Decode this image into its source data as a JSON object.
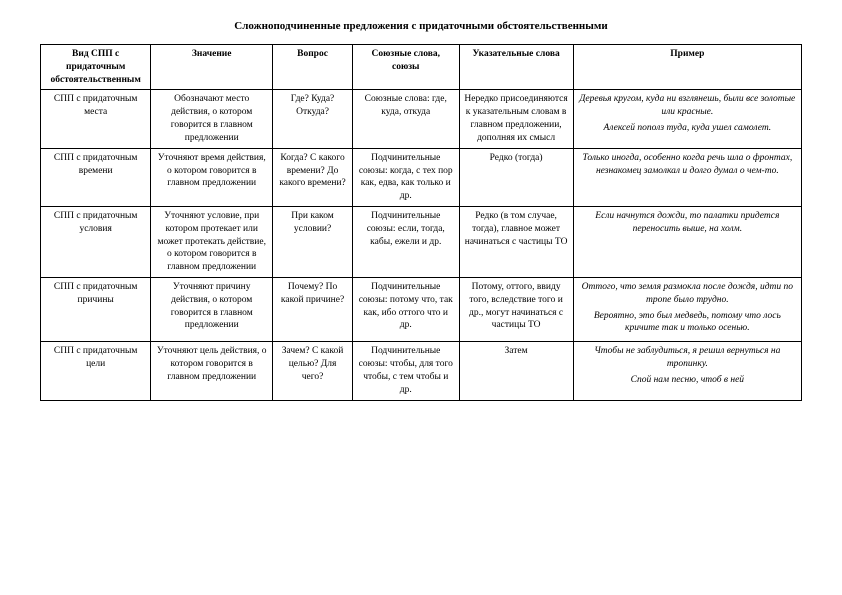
{
  "title": "Сложноподчиненные предложения с придаточными обстоятельственными",
  "headers": {
    "c1": "Вид СПП с придаточным обстоятельственным",
    "c2": "Значение",
    "c3": "Вопрос",
    "c4": "Союзные слова, союзы",
    "c5": "Указательные слова",
    "c6": "Пример"
  },
  "rows": [
    {
      "type": "СПП с придаточным места",
      "meaning": "Обозначают место действия, о котором говорится в главном предложении",
      "question": "Где? Куда? Откуда?",
      "unions": "Союзные слова: где, куда, откуда",
      "pointers": "Нередко присоединяются к указательным словам в главном предложении, дополняя их смысл",
      "example1": "Деревья кругом, куда ни взглянешь, были все золотые или красные.",
      "example2": "Алексей пополз туда, куда ушел самолет."
    },
    {
      "type": "СПП с придаточным времени",
      "meaning": "Уточняют время действия, о котором говорится в главном предложении",
      "question": "Когда? С какого времени? До какого времени?",
      "unions": "Подчинительные союзы: когда, с тех пор как, едва, как только и др.",
      "pointers": "Редко (тогда)",
      "example1": "Только иногда, особенно когда речь шла о фронтах, незнакомец замолкал и долго думал о чем-то.",
      "example2": ""
    },
    {
      "type": "СПП с придаточным условия",
      "meaning": "Уточняют условие, при котором протекает или может протекать действие, о котором говорится в главном предложении",
      "question": "При каком условии?",
      "unions": "Подчинительные союзы: если, тогда, кабы, ежели и др.",
      "pointers": "Редко (в том случае, тогда), главное может начинаться с частицы ТО",
      "example1": "Если начнутся дожди, то палатки придется переносить выше, на холм.",
      "example2": ""
    },
    {
      "type": "СПП с придаточным причины",
      "meaning": "Уточняют причину действия, о котором говорится в главном предложении",
      "question": "Почему? По какой причине?",
      "unions": "Подчинительные союзы: потому что, так как,  ибо оттого что и др.",
      "pointers": "Потому, оттого, ввиду того, вследствие того и др., могут начинаться с частицы ТО",
      "example1": "Оттого, что земля размокла после дождя, идти по тропе было трудно.",
      "example2": "Вероятно, это был медведь, потому что лось кричите так и только осенью."
    },
    {
      "type": "СПП с придаточным цели",
      "meaning": "Уточняют цель действия, о котором говорится в главном предложении",
      "question": "Зачем? С какой целью? Для чего?",
      "unions": "Подчинительные союзы: чтобы, для того чтобы, с тем чтобы и др.",
      "pointers": "Затем",
      "example1": "Чтобы не заблудиться, я решил вернуться на тропинку.",
      "example2": "Спой нам песню, чтоб в ней"
    }
  ]
}
